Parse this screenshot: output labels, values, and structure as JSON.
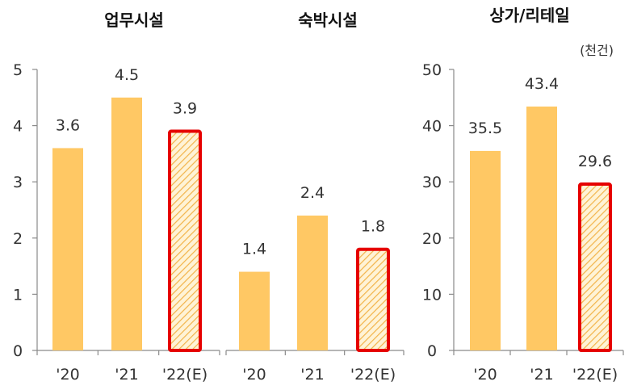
{
  "colors": {
    "actual_bar": "#FFC864",
    "estimate_border": "#E60000",
    "estimate_hatch": "#F2B44A",
    "estimate_fill": "#FFF3D6",
    "axis": "#8a8a8a"
  },
  "chart_data": [
    {
      "type": "bar",
      "title": "업무시설",
      "categories": [
        "'20",
        "'21",
        "'22(E)"
      ],
      "values": [
        3.6,
        4.5,
        3.9
      ],
      "data_labels": [
        "3.6",
        "4.5",
        "3.9"
      ],
      "estimated": [
        false,
        false,
        true
      ],
      "ylim": [
        0,
        5
      ],
      "yticks": [
        0,
        1,
        2,
        3,
        4,
        5
      ],
      "unit": ""
    },
    {
      "type": "bar",
      "title": "숙박시설",
      "categories": [
        "'20",
        "'21",
        "'22(E)"
      ],
      "values": [
        1.4,
        2.4,
        1.8
      ],
      "data_labels": [
        "1.4",
        "2.4",
        "1.8"
      ],
      "estimated": [
        false,
        false,
        true
      ],
      "ylim": [
        0,
        5
      ],
      "yticks": [],
      "unit": ""
    },
    {
      "type": "bar",
      "title": "상가/리테일",
      "categories": [
        "'20",
        "'21",
        "'22(E)"
      ],
      "values": [
        35.5,
        43.4,
        29.6
      ],
      "data_labels": [
        "35.5",
        "43.4",
        "29.6"
      ],
      "estimated": [
        false,
        false,
        true
      ],
      "ylim": [
        0,
        50
      ],
      "yticks": [
        0,
        10,
        20,
        30,
        40,
        50
      ],
      "unit": "(천건)"
    }
  ]
}
